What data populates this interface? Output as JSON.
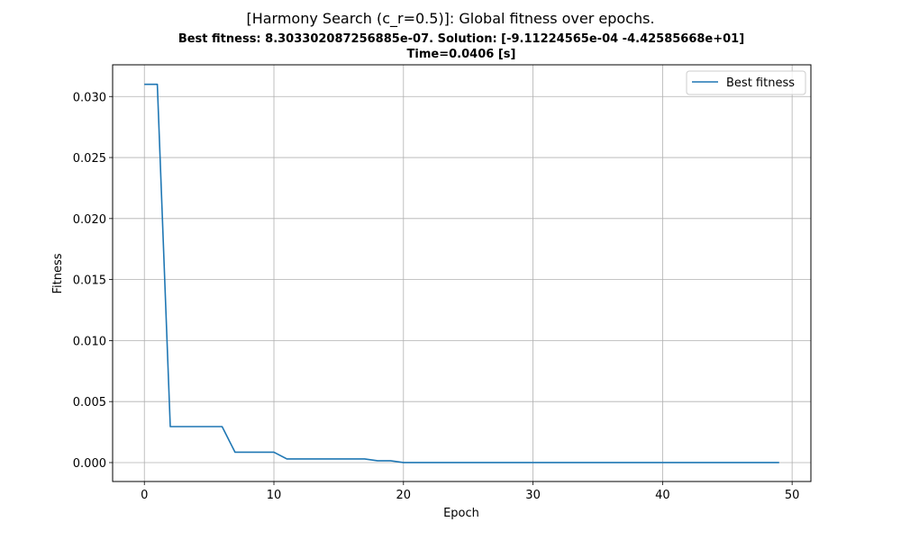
{
  "chart_data": {
    "type": "line",
    "title": "[Harmony Search (c_r=0.5)]: Global fitness over epochs.",
    "subtitle_line1": "Best fitness: 8.303302087256885e-07. Solution: [-9.11224565e-04 -4.42585668e+01]",
    "subtitle_line2": "Time=0.0406 [s]",
    "xlabel": "Epoch",
    "ylabel": "Fitness",
    "xlim": [
      -2.45,
      51.45
    ],
    "ylim": [
      -0.00155,
      0.0326
    ],
    "xticks": [
      0,
      10,
      20,
      30,
      40,
      50
    ],
    "xtick_labels": [
      "0",
      "10",
      "20",
      "30",
      "40",
      "50"
    ],
    "yticks": [
      0.0,
      0.005,
      0.01,
      0.015,
      0.02,
      0.025,
      0.03
    ],
    "ytick_labels": [
      "0.000",
      "0.005",
      "0.010",
      "0.015",
      "0.020",
      "0.025",
      "0.030"
    ],
    "grid": true,
    "legend_position": "top-right",
    "series": [
      {
        "name": "Best fitness",
        "color": "#1f77b4",
        "x": [
          0,
          1,
          2,
          3,
          4,
          5,
          6,
          7,
          8,
          9,
          10,
          11,
          12,
          13,
          14,
          15,
          16,
          17,
          18,
          19,
          20,
          21,
          22,
          23,
          24,
          25,
          26,
          27,
          28,
          29,
          30,
          31,
          32,
          33,
          34,
          35,
          36,
          37,
          38,
          39,
          40,
          41,
          42,
          43,
          44,
          45,
          46,
          47,
          48,
          49
        ],
        "y": [
          0.031,
          0.031,
          0.00295,
          0.00295,
          0.00295,
          0.00295,
          0.00295,
          0.00085,
          0.00085,
          0.00085,
          0.00085,
          0.0003,
          0.0003,
          0.0003,
          0.0003,
          0.0003,
          0.0003,
          0.0003,
          0.00015,
          0.00015,
          5e-06,
          3e-06,
          2e-06,
          2e-06,
          2e-06,
          1e-06,
          1e-06,
          1e-06,
          1e-06,
          1e-06,
          1e-06,
          1e-06,
          1e-06,
          1e-06,
          1e-06,
          1e-06,
          1e-06,
          1e-06,
          1e-06,
          1e-06,
          1e-06,
          1e-06,
          1e-06,
          1e-06,
          1e-06,
          1e-06,
          1e-06,
          1e-06,
          1e-06,
          8.3e-07
        ]
      }
    ]
  }
}
